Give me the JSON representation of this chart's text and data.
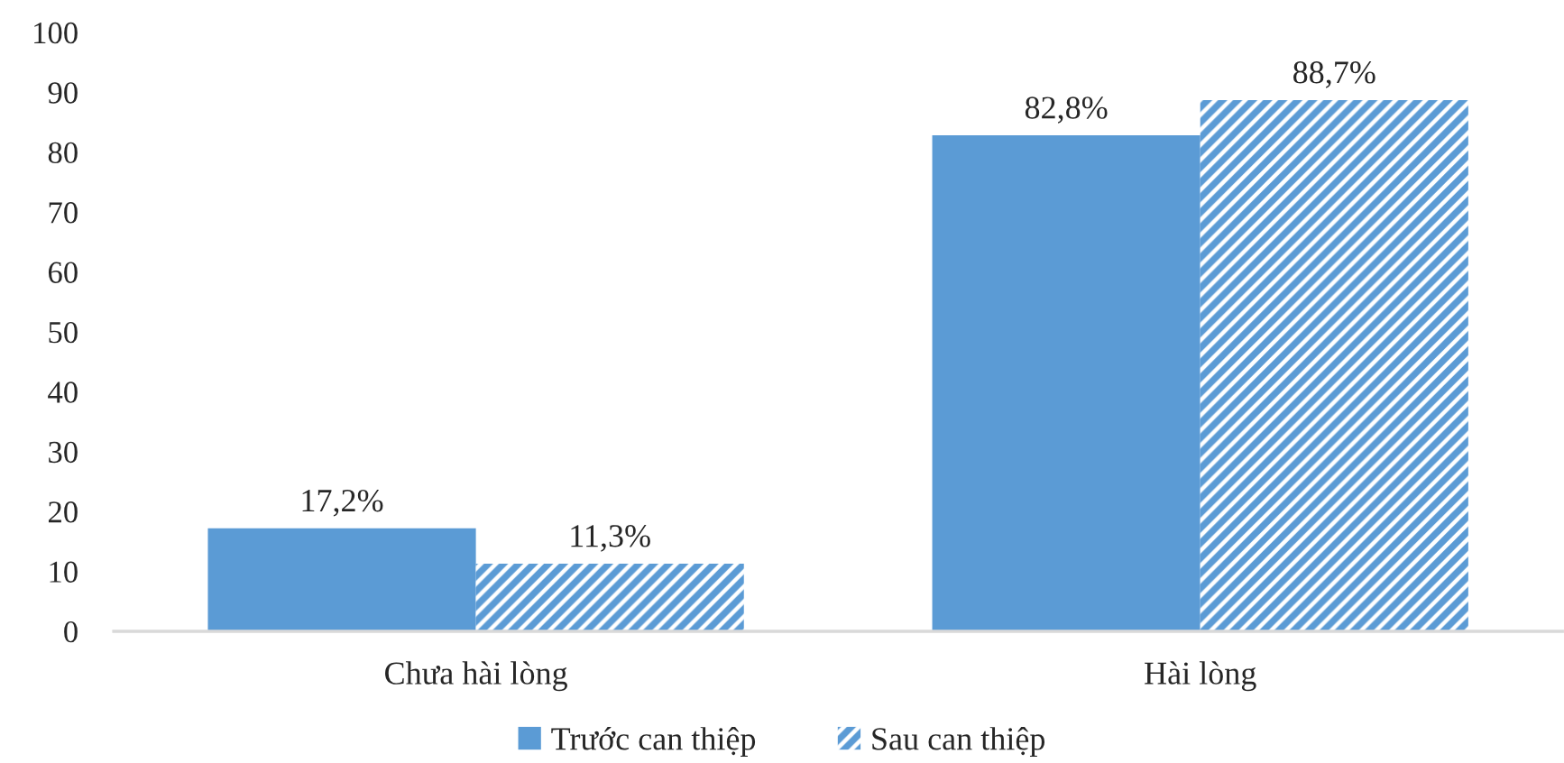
{
  "chart_data": {
    "type": "bar",
    "categories": [
      "Chưa hài lòng",
      "Hài lòng"
    ],
    "series": [
      {
        "name": "Trước can thiệp",
        "color": "#5b9bd5",
        "values": [
          17.2,
          82.8
        ],
        "value_labels": [
          "17,2%",
          "82,8%"
        ]
      },
      {
        "name": "Sau can thiệp",
        "color": "#5b9bd5",
        "values": [
          11.3,
          88.7
        ],
        "value_labels": [
          "11,3%",
          "88,7%"
        ]
      }
    ],
    "ylim": [
      0,
      100
    ],
    "yticks": [
      0,
      10,
      20,
      30,
      40,
      50,
      60,
      70,
      80,
      90,
      100
    ],
    "grid": false,
    "legend": "bottom"
  }
}
